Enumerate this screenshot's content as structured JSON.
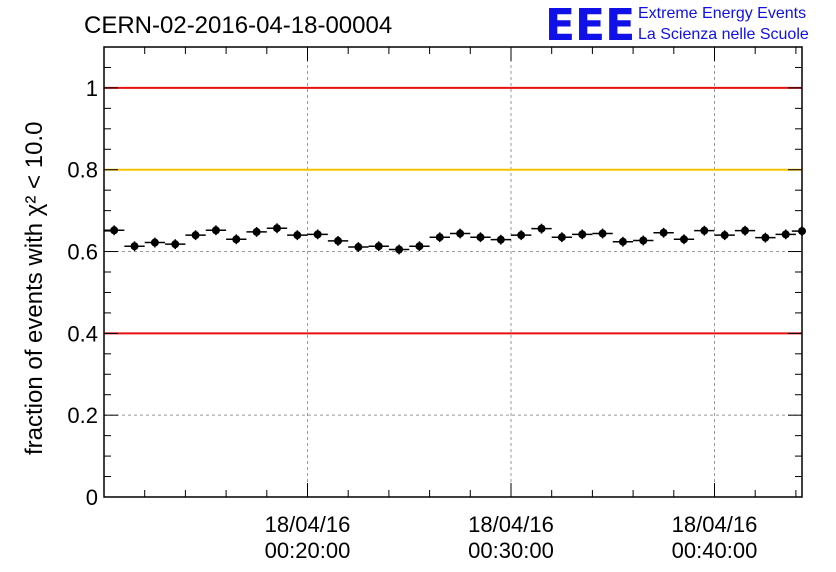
{
  "header": {
    "title": "CERN-02-2016-04-18-00004",
    "logo_text": "EEE",
    "logo_line1": "Extreme Energy Events",
    "logo_line2": "La Scienza nelle Scuole"
  },
  "chart_data": {
    "type": "scatter",
    "title": "CERN-02-2016-04-18-00004",
    "ylabel": "fraction of events with χ² < 10.0",
    "xlabel": "",
    "ylim": [
      0,
      1.1
    ],
    "x_unit": "minutes after 18/04/16 00:00:00",
    "xlim": [
      10.0,
      44.3
    ],
    "x_ticks": [
      {
        "x": 20,
        "date": "18/04/16",
        "time": "00:20:00"
      },
      {
        "x": 30,
        "date": "18/04/16",
        "time": "00:30:00"
      },
      {
        "x": 40,
        "date": "18/04/16",
        "time": "00:40:00"
      }
    ],
    "y_ticks": [
      {
        "value": 0,
        "label": "0"
      },
      {
        "value": 0.2,
        "label": "0.2"
      },
      {
        "value": 0.4,
        "label": "0.4"
      },
      {
        "value": 0.6,
        "label": "0.6"
      },
      {
        "value": 0.8,
        "label": "0.8"
      },
      {
        "value": 1,
        "label": "1"
      }
    ],
    "grid": true,
    "reference_lines": [
      {
        "value": 1.0,
        "color": "#e81010"
      },
      {
        "value": 0.8,
        "color": "#f5c400"
      },
      {
        "value": 0.4,
        "color": "#e81010"
      }
    ],
    "series": [
      {
        "marker_color": "#000000",
        "x_halfwidth": 0.5,
        "y_error": 0.012,
        "x": [
          10.5,
          11.5,
          12.5,
          13.5,
          14.5,
          15.5,
          16.5,
          17.5,
          18.5,
          19.5,
          20.5,
          21.5,
          22.5,
          23.5,
          24.5,
          25.5,
          26.5,
          27.5,
          28.5,
          29.5,
          30.5,
          31.5,
          32.5,
          33.5,
          34.5,
          35.5,
          36.5,
          37.5,
          38.5,
          39.5,
          40.5,
          41.5,
          42.5,
          43.5,
          44.3
        ],
        "y": [
          0.652,
          0.613,
          0.622,
          0.618,
          0.64,
          0.652,
          0.63,
          0.648,
          0.657,
          0.64,
          0.642,
          0.626,
          0.611,
          0.613,
          0.605,
          0.613,
          0.635,
          0.644,
          0.635,
          0.629,
          0.64,
          0.656,
          0.635,
          0.642,
          0.644,
          0.624,
          0.627,
          0.646,
          0.63,
          0.651,
          0.64,
          0.651,
          0.634,
          0.642,
          0.65
        ]
      }
    ]
  }
}
